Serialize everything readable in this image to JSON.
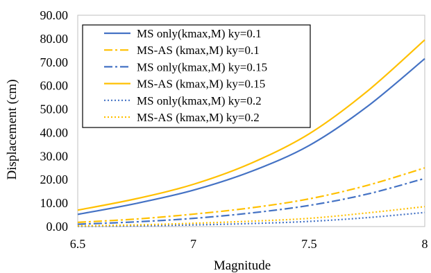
{
  "chart_data": {
    "type": "line",
    "title": "",
    "xlabel": "Magnitude",
    "ylabel": "Displacement (cm)",
    "xlim": [
      6.5,
      8
    ],
    "ylim": [
      0,
      90
    ],
    "xticks": [
      6.5,
      7,
      7.5,
      8
    ],
    "xtick_labels": [
      "6.5",
      "7",
      "7.5",
      "8"
    ],
    "yticks": [
      0,
      10,
      20,
      30,
      40,
      50,
      60,
      70,
      80,
      90
    ],
    "ytick_labels": [
      "0.00",
      "10.00",
      "20.00",
      "30.00",
      "40.00",
      "50.00",
      "60.00",
      "70.00",
      "80.00",
      "90.00"
    ],
    "grid": false,
    "legend_position": "top-left",
    "x": [
      6.5,
      6.75,
      7.0,
      7.25,
      7.5,
      7.75,
      8.0
    ],
    "series": [
      {
        "name": "MS only(kmax,M) ky=0.1",
        "color": "#4472C4",
        "style": "solid",
        "values": [
          5.2,
          9.8,
          15.5,
          23.5,
          34.5,
          51.0,
          71.5
        ]
      },
      {
        "name": "MS-AS (kmax,M) ky=0.1",
        "color": "#FFC000",
        "style": "dashdot",
        "values": [
          1.8,
          3.2,
          5.3,
          8.0,
          11.8,
          17.5,
          25.0
        ]
      },
      {
        "name": "MS only(kmax,M) ky=0.15",
        "color": "#4472C4",
        "style": "dashdot",
        "values": [
          1.0,
          2.0,
          3.5,
          5.8,
          9.0,
          13.8,
          20.5
        ]
      },
      {
        "name": "MS-AS (kmax,M) ky=0.15",
        "color": "#FFC000",
        "style": "solid",
        "values": [
          7.0,
          11.8,
          18.0,
          27.0,
          39.5,
          57.5,
          79.5
        ]
      },
      {
        "name": "MS only(kmax,M) ky=0.2",
        "color": "#4472C4",
        "style": "dotted",
        "values": [
          0.1,
          0.3,
          0.7,
          1.3,
          2.2,
          3.8,
          6.0
        ]
      },
      {
        "name": "MS-AS (kmax,M) ky=0.2",
        "color": "#FFC000",
        "style": "dotted",
        "values": [
          0.3,
          0.7,
          1.4,
          2.3,
          3.5,
          5.8,
          8.5
        ]
      }
    ]
  }
}
